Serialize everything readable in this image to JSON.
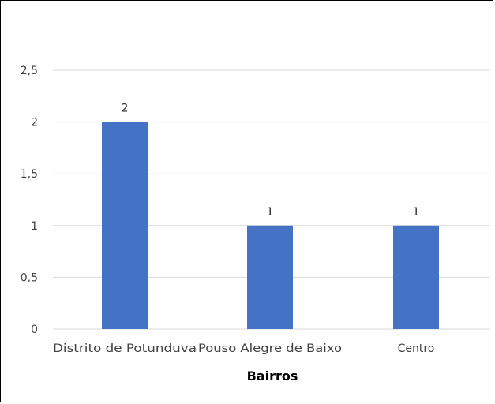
{
  "chart_data": {
    "type": "bar",
    "categories": [
      "Distrito de Potunduva",
      "Pouso Alegre de Baixo",
      "Centro"
    ],
    "values": [
      2,
      1,
      1
    ],
    "data_labels": [
      "2",
      "1",
      "1"
    ],
    "title": "",
    "xlabel": "Bairros",
    "ylabel": "",
    "ylim": [
      0,
      2.5
    ],
    "yticks": [
      "0",
      "0,5",
      "1",
      "1,5",
      "2",
      "2,5"
    ],
    "grid": true,
    "legend": "none",
    "bar_color": "#4472C4",
    "grid_color": "#D9D9D9"
  }
}
